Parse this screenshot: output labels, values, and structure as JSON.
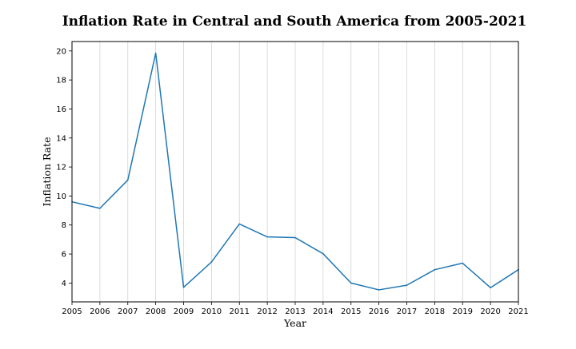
{
  "chart_data": {
    "type": "line",
    "title": "Inflation Rate in Central and South America from 2005-2021",
    "xlabel": "Year",
    "ylabel": "Inflation Rate",
    "x": [
      2005,
      2006,
      2007,
      2008,
      2009,
      2010,
      2011,
      2012,
      2013,
      2014,
      2015,
      2016,
      2017,
      2018,
      2019,
      2020,
      2021
    ],
    "series": [
      {
        "values": [
          9.6,
          9.15,
          11.1,
          19.85,
          3.7,
          5.45,
          8.07,
          7.18,
          7.13,
          6.02,
          4.0,
          3.53,
          3.85,
          4.92,
          5.37,
          3.68,
          4.92
        ]
      }
    ],
    "xticks": [
      "2005",
      "2006",
      "2007",
      "2008",
      "2009",
      "2010",
      "2011",
      "2012",
      "2013",
      "2014",
      "2015",
      "2016",
      "2017",
      "2018",
      "2019",
      "2020",
      "2021"
    ],
    "yticks": [
      "4",
      "6",
      "8",
      "10",
      "12",
      "14",
      "16",
      "18",
      "20"
    ],
    "xlim": [
      2005,
      2021
    ],
    "ylim": [
      2.7,
      20.65
    ],
    "grid": "vertical",
    "line_color": "#1f77b4",
    "grid_color": "#d3d3d3"
  }
}
